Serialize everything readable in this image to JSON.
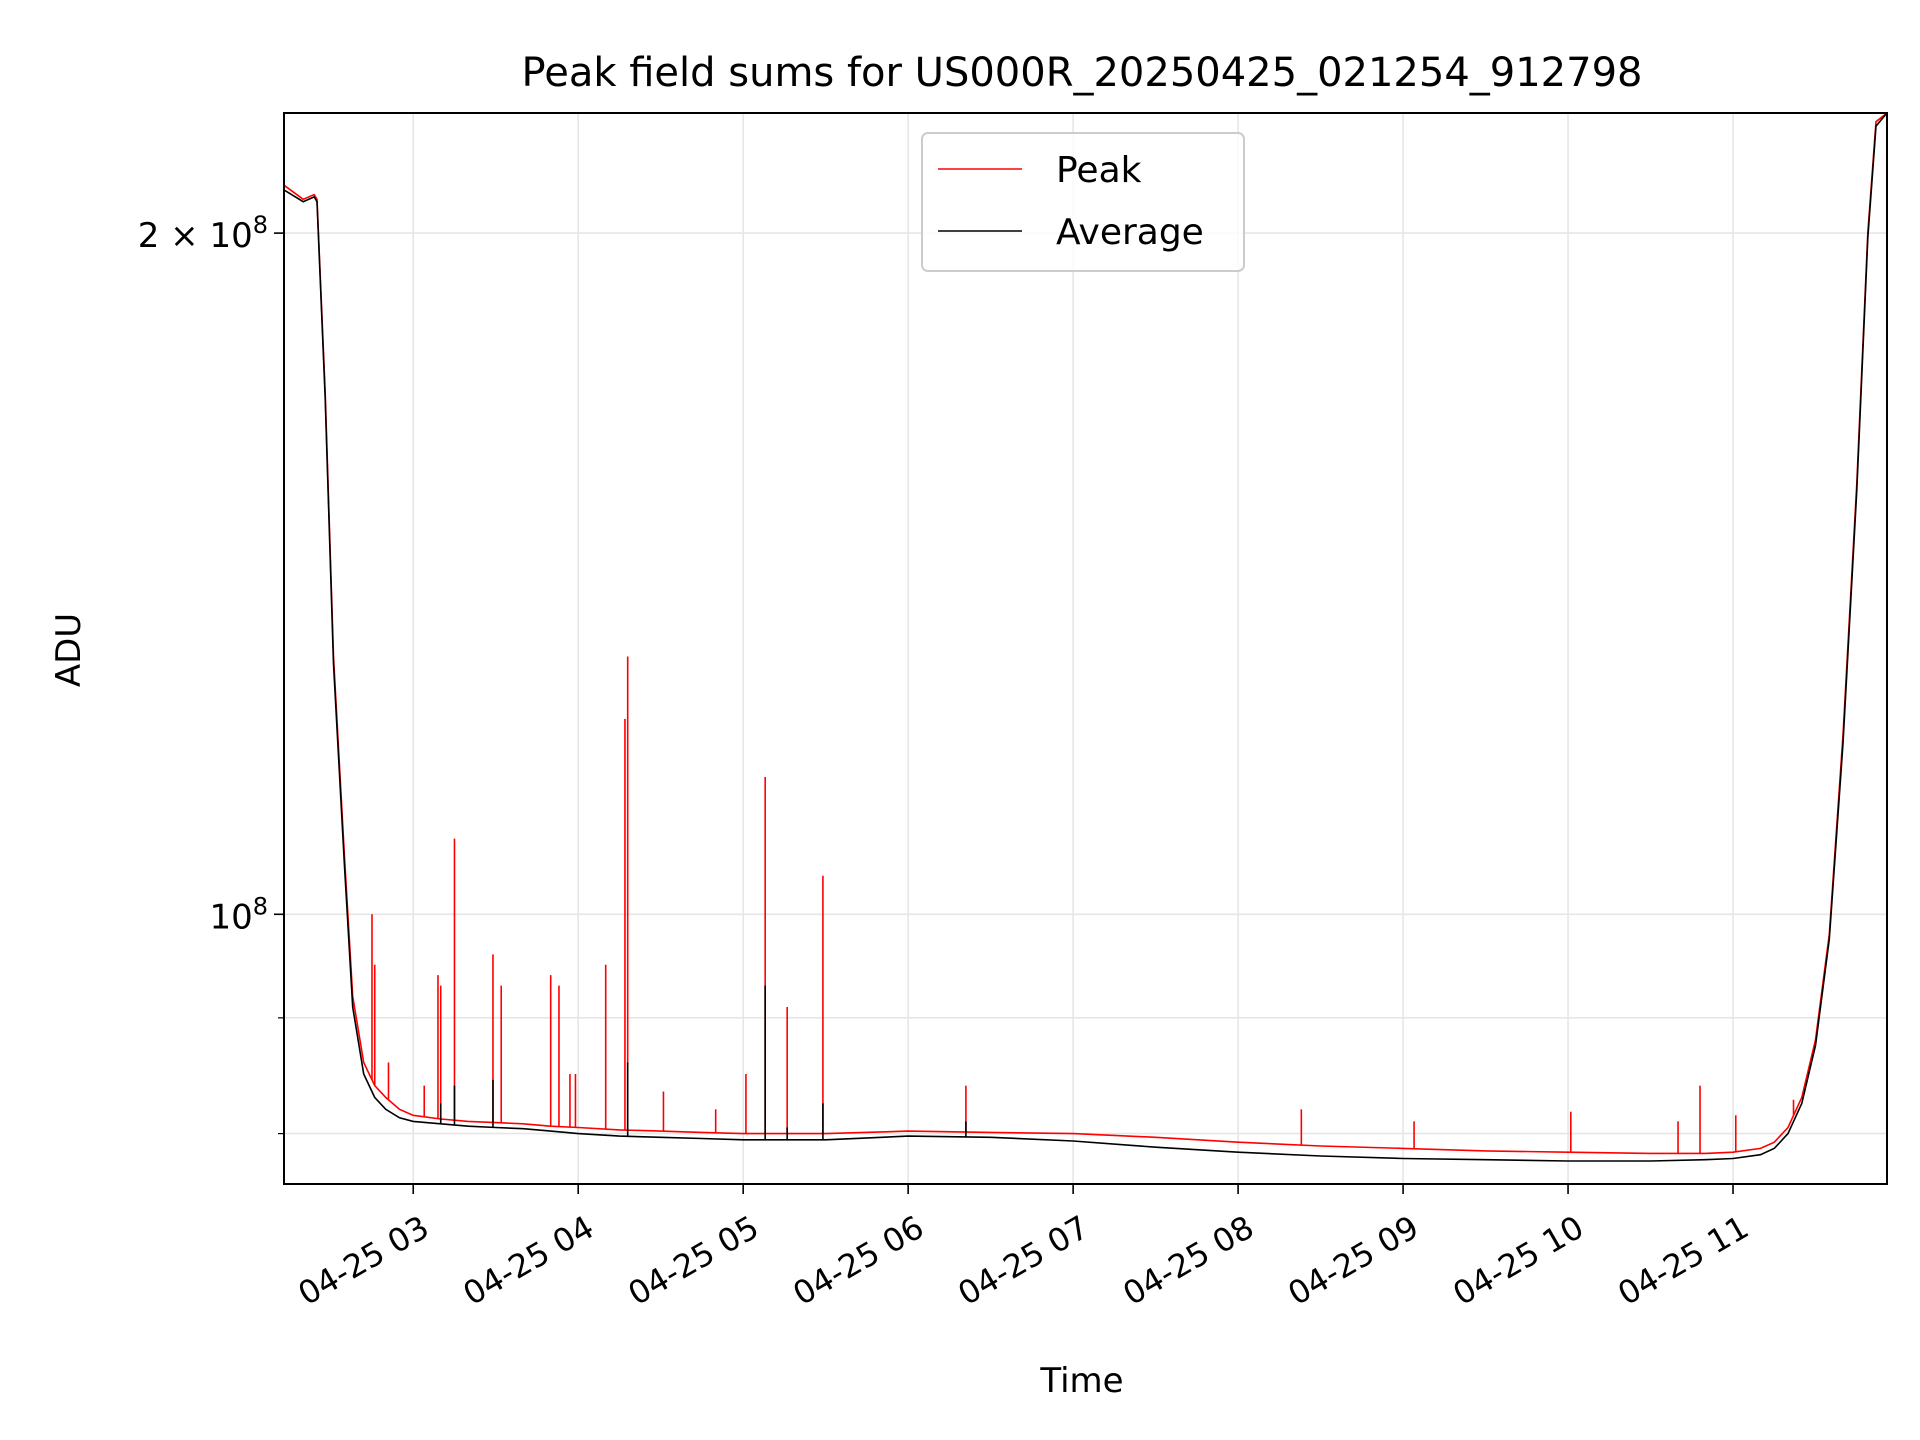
{
  "chart_data": {
    "type": "line",
    "title": "Peak field sums for US000R_20250425_021254_912798",
    "xlabel": "Time",
    "ylabel": "ADU",
    "y_scale": "log",
    "ylim": [
      76000000,
      226000000
    ],
    "xlim": [
      "2025-04-25 02:13",
      "2025-04-25 11:56"
    ],
    "grid": true,
    "legend_position": "top-center",
    "x_tick_labels": [
      "04-25 03",
      "04-25 04",
      "04-25 05",
      "04-25 06",
      "04-25 07",
      "04-25 08",
      "04-25 09",
      "04-25 10",
      "04-25 11"
    ],
    "x_ticks": [
      "2025-04-25 03:00",
      "2025-04-25 04:00",
      "2025-04-25 05:00",
      "2025-04-25 06:00",
      "2025-04-25 07:00",
      "2025-04-25 08:00",
      "2025-04-25 09:00",
      "2025-04-25 10:00",
      "2025-04-25 11:00"
    ],
    "y_ticks": [
      {
        "value": 200000000,
        "label": "2 × 10",
        "exp": "8"
      },
      {
        "value": 100000000,
        "label": "10",
        "exp": "8"
      }
    ],
    "y_minor_ticks": [
      80000000,
      90000000
    ],
    "series": [
      {
        "name": "Peak",
        "color": "#ff0000",
        "x": [
          "2025-04-25 02:13",
          "2025-04-25 02:20",
          "2025-04-25 02:24",
          "2025-04-25 02:25",
          "2025-04-25 02:28",
          "2025-04-25 02:31",
          "2025-04-25 02:35",
          "2025-04-25 02:38",
          "2025-04-25 02:42",
          "2025-04-25 02:46",
          "2025-04-25 02:50",
          "2025-04-25 02:55",
          "2025-04-25 03:00",
          "2025-04-25 03:10",
          "2025-04-25 03:20",
          "2025-04-25 03:30",
          "2025-04-25 03:40",
          "2025-04-25 03:50",
          "2025-04-25 04:00",
          "2025-04-25 04:15",
          "2025-04-25 04:30",
          "2025-04-25 04:45",
          "2025-04-25 05:00",
          "2025-04-25 05:30",
          "2025-04-25 06:00",
          "2025-04-25 06:30",
          "2025-04-25 07:00",
          "2025-04-25 07:30",
          "2025-04-25 08:00",
          "2025-04-25 08:30",
          "2025-04-25 09:00",
          "2025-04-25 09:30",
          "2025-04-25 10:00",
          "2025-04-25 10:30",
          "2025-04-25 10:50",
          "2025-04-25 11:00",
          "2025-04-25 11:10",
          "2025-04-25 11:15",
          "2025-04-25 11:20",
          "2025-04-25 11:25",
          "2025-04-25 11:30",
          "2025-04-25 11:35",
          "2025-04-25 11:40",
          "2025-04-25 11:45",
          "2025-04-25 11:49",
          "2025-04-25 11:52",
          "2025-04-25 11:56"
        ],
        "y": [
          210000000,
          207000000,
          208000000,
          207000000,
          170000000,
          130000000,
          106000000,
          92000000,
          86000000,
          84000000,
          83000000,
          82000000,
          81500000,
          81200000,
          81000000,
          80900000,
          80800000,
          80600000,
          80500000,
          80300000,
          80200000,
          80100000,
          80000000,
          80000000,
          80200000,
          80100000,
          80000000,
          79700000,
          79300000,
          79000000,
          78800000,
          78600000,
          78500000,
          78400000,
          78400000,
          78500000,
          78800000,
          79300000,
          80500000,
          83000000,
          88000000,
          98000000,
          120000000,
          155000000,
          200000000,
          224000000,
          226000000
        ],
        "spikes": [
          {
            "x": "2025-04-25 02:45",
            "y": 100000000
          },
          {
            "x": "2025-04-25 02:46",
            "y": 95000000
          },
          {
            "x": "2025-04-25 02:51",
            "y": 86000000
          },
          {
            "x": "2025-04-25 03:04",
            "y": 84000000
          },
          {
            "x": "2025-04-25 03:09",
            "y": 94000000
          },
          {
            "x": "2025-04-25 03:10",
            "y": 93000000
          },
          {
            "x": "2025-04-25 03:15",
            "y": 108000000
          },
          {
            "x": "2025-04-25 03:29",
            "y": 96000000
          },
          {
            "x": "2025-04-25 03:32",
            "y": 93000000
          },
          {
            "x": "2025-04-25 03:50",
            "y": 94000000
          },
          {
            "x": "2025-04-25 03:53",
            "y": 93000000
          },
          {
            "x": "2025-04-25 03:57",
            "y": 85000000
          },
          {
            "x": "2025-04-25 03:59",
            "y": 85000000
          },
          {
            "x": "2025-04-25 04:10",
            "y": 95000000
          },
          {
            "x": "2025-04-25 04:17",
            "y": 122000000
          },
          {
            "x": "2025-04-25 04:18",
            "y": 130000000
          },
          {
            "x": "2025-04-25 04:31",
            "y": 83500000
          },
          {
            "x": "2025-04-25 04:50",
            "y": 82000000
          },
          {
            "x": "2025-04-25 05:01",
            "y": 85000000
          },
          {
            "x": "2025-04-25 05:08",
            "y": 115000000
          },
          {
            "x": "2025-04-25 05:16",
            "y": 91000000
          },
          {
            "x": "2025-04-25 05:29",
            "y": 104000000
          },
          {
            "x": "2025-04-25 06:21",
            "y": 84000000
          },
          {
            "x": "2025-04-25 08:23",
            "y": 82000000
          },
          {
            "x": "2025-04-25 09:04",
            "y": 81000000
          },
          {
            "x": "2025-04-25 10:01",
            "y": 81800000
          },
          {
            "x": "2025-04-25 10:40",
            "y": 81000000
          },
          {
            "x": "2025-04-25 10:48",
            "y": 84000000
          },
          {
            "x": "2025-04-25 11:01",
            "y": 81500000
          },
          {
            "x": "2025-04-25 11:22",
            "y": 82800000
          }
        ]
      },
      {
        "name": "Average",
        "color": "#000000",
        "x": [
          "2025-04-25 02:13",
          "2025-04-25 02:20",
          "2025-04-25 02:24",
          "2025-04-25 02:25",
          "2025-04-25 02:28",
          "2025-04-25 02:31",
          "2025-04-25 02:35",
          "2025-04-25 02:38",
          "2025-04-25 02:42",
          "2025-04-25 02:46",
          "2025-04-25 02:50",
          "2025-04-25 02:55",
          "2025-04-25 03:00",
          "2025-04-25 03:10",
          "2025-04-25 03:20",
          "2025-04-25 03:30",
          "2025-04-25 03:40",
          "2025-04-25 03:50",
          "2025-04-25 04:00",
          "2025-04-25 04:15",
          "2025-04-25 04:30",
          "2025-04-25 04:45",
          "2025-04-25 05:00",
          "2025-04-25 05:30",
          "2025-04-25 06:00",
          "2025-04-25 06:30",
          "2025-04-25 07:00",
          "2025-04-25 07:30",
          "2025-04-25 08:00",
          "2025-04-25 08:30",
          "2025-04-25 09:00",
          "2025-04-25 09:30",
          "2025-04-25 10:00",
          "2025-04-25 10:30",
          "2025-04-25 10:50",
          "2025-04-25 11:00",
          "2025-04-25 11:10",
          "2025-04-25 11:15",
          "2025-04-25 11:20",
          "2025-04-25 11:25",
          "2025-04-25 11:30",
          "2025-04-25 11:35",
          "2025-04-25 11:40",
          "2025-04-25 11:45",
          "2025-04-25 11:49",
          "2025-04-25 11:52",
          "2025-04-25 11:56"
        ],
        "y": [
          209000000,
          206500000,
          207500000,
          206500000,
          169000000,
          129000000,
          105000000,
          91000000,
          85000000,
          83000000,
          82000000,
          81300000,
          81000000,
          80800000,
          80600000,
          80500000,
          80400000,
          80200000,
          80000000,
          79800000,
          79700000,
          79600000,
          79500000,
          79500000,
          79800000,
          79700000,
          79400000,
          78900000,
          78500000,
          78200000,
          78000000,
          77900000,
          77800000,
          77800000,
          77900000,
          78000000,
          78300000,
          78800000,
          80000000,
          82500000,
          87500000,
          97500000,
          119000000,
          154000000,
          199000000,
          223000000,
          226000000
        ],
        "spikes": [
          {
            "x": "2025-04-25 02:46",
            "y": 83000000
          },
          {
            "x": "2025-04-25 03:10",
            "y": 82500000
          },
          {
            "x": "2025-04-25 03:15",
            "y": 84000000
          },
          {
            "x": "2025-04-25 03:29",
            "y": 84500000
          },
          {
            "x": "2025-04-25 04:18",
            "y": 86000000
          },
          {
            "x": "2025-04-25 05:08",
            "y": 93000000
          },
          {
            "x": "2025-04-25 05:16",
            "y": 80500000
          },
          {
            "x": "2025-04-25 05:29",
            "y": 82500000
          },
          {
            "x": "2025-04-25 06:21",
            "y": 81000000
          }
        ]
      }
    ]
  }
}
